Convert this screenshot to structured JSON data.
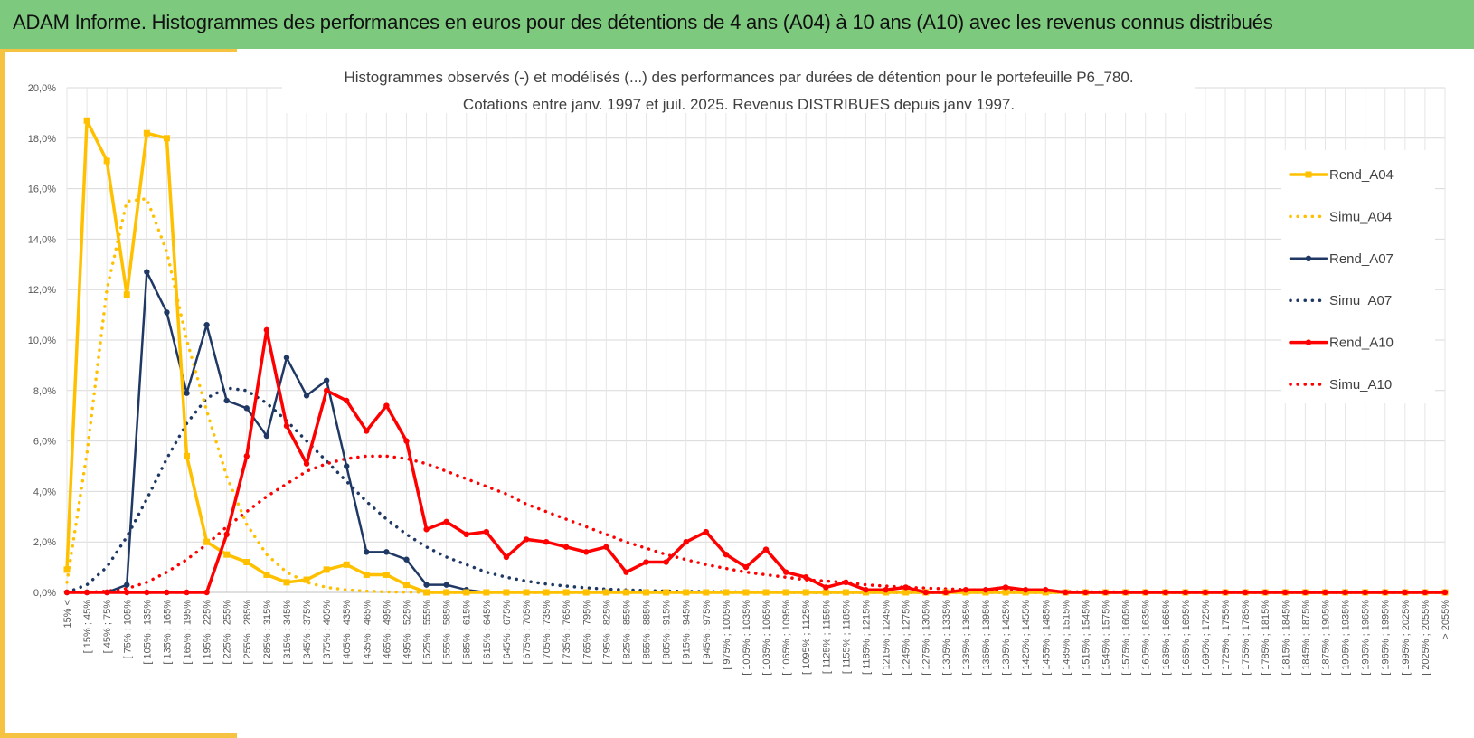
{
  "banner": {
    "title": "ADAM Informe. Histogrammes des performances en euros pour des détentions de 4 ans (A04) à 10 ans (A10) avec les revenus connus distribués"
  },
  "colors": {
    "banner_bg": "#7dc97e",
    "accent": "#f5c242",
    "A04": "#ffc000",
    "A07": "#1f3864",
    "A10": "#ff0000"
  },
  "chart_data": {
    "type": "line",
    "title": "Histogrammes observés (-) et modélisés (...) des performances par durées de détention pour le portefeuille P6_780.",
    "subtitle": "Cotations entre janv. 1997 et juil. 2025. Revenus DISTRIBUES depuis janv 1997.",
    "xlabel": "",
    "ylabel": "",
    "ylim": [
      0,
      20
    ],
    "yticks": [
      "0,0%",
      "2,0%",
      "4,0%",
      "6,0%",
      "8,0%",
      "10,0%",
      "12,0%",
      "14,0%",
      "16,0%",
      "18,0%",
      "20,0%"
    ],
    "grid": true,
    "legend_position": "right",
    "categories": [
      "15% <",
      "[ 15% ; 45%",
      "[ 45% ; 75%",
      "[ 75% ; 105%",
      "[ 105% ; 135%",
      "[ 135% ; 165%",
      "[ 165% ; 195%",
      "[ 195% ; 225%",
      "[ 225% ; 255%",
      "[ 255% ; 285%",
      "[ 285% ; 315%",
      "[ 315% ; 345%",
      "[ 345% ; 375%",
      "[ 375% ; 405%",
      "[ 405% ; 435%",
      "[ 435% ; 465%",
      "[ 465% ; 495%",
      "[ 495% ; 525%",
      "[ 525% ; 555%",
      "[ 555% ; 585%",
      "[ 585% ; 615%",
      "[ 615% ; 645%",
      "[ 645% ; 675%",
      "[ 675% ; 705%",
      "[ 705% ; 735%",
      "[ 735% ; 765%",
      "[ 765% ; 795%",
      "[ 795% ; 825%",
      "[ 825% ; 855%",
      "[ 855% ; 885%",
      "[ 885% ; 915%",
      "[ 915% ; 945%",
      "[ 945% ; 975%",
      "[ 975% ; 1005%",
      "[ 1005% ; 1035%",
      "[ 1035% ; 1065%",
      "[ 1065% ; 1095%",
      "[ 1095% ; 1125%",
      "[ 1125% ; 1155%",
      "[ 1155% ; 1185%",
      "[ 1185% ; 1215%",
      "[ 1215% ; 1245%",
      "[ 1245% ; 1275%",
      "[ 1275% ; 1305%",
      "[ 1305% ; 1335%",
      "[ 1335% ; 1365%",
      "[ 1365% ; 1395%",
      "[ 1395% ; 1425%",
      "[ 1425% ; 1455%",
      "[ 1455% ; 1485%",
      "[ 1485% ; 1515%",
      "[ 1515% ; 1545%",
      "[ 1545% ; 1575%",
      "[ 1575% ; 1605%",
      "[ 1605% ; 1635%",
      "[ 1635% ; 1665%",
      "[ 1665% ; 1695%",
      "[ 1695% ; 1725%",
      "[ 1725% ; 1755%",
      "[ 1755% ; 1785%",
      "[ 1785% ; 1815%",
      "[ 1815% ; 1845%",
      "[ 1845% ; 1875%",
      "[ 1875% ; 1905%",
      "[ 1905% ; 1935%",
      "[ 1935% ; 1965%",
      "[ 1965% ; 1995%",
      "[ 1995% ; 2025%",
      "[ 2025% ; 2055%",
      "> 2055%"
    ],
    "series": [
      {
        "name": "Rend_A04",
        "style": "solid",
        "marker": "square",
        "color": "#ffc000",
        "values": [
          0.9,
          18.7,
          17.1,
          11.8,
          18.2,
          18.0,
          5.4,
          2.0,
          1.5,
          1.2,
          0.7,
          0.4,
          0.5,
          0.9,
          1.1,
          0.7,
          0.7,
          0.3,
          0.0,
          0.0,
          0.0,
          0.0,
          0.0,
          0.0,
          0.0,
          0.0,
          0.0,
          0.0,
          0.0,
          0.0,
          0.0,
          0.0,
          0.0,
          0.0,
          0.0,
          0.0,
          0.0,
          0.0,
          0.0,
          0.0,
          0.0,
          0.0,
          0.0,
          0.0,
          0.0,
          0.0,
          0.0,
          0.0,
          0.0,
          0.0,
          0.0,
          0.0,
          0.0,
          0.0,
          0.0,
          0.0,
          0.0,
          0.0,
          0.0,
          0.0,
          0.0,
          0.0,
          0.0,
          0.0,
          0.0,
          0.0,
          0.0,
          0.0,
          0.0,
          0.0
        ]
      },
      {
        "name": "Simu_A04",
        "style": "dotted",
        "marker": "none",
        "color": "#ffc000",
        "values": [
          0.4,
          5.5,
          12.0,
          15.5,
          15.6,
          13.5,
          10.0,
          7.2,
          4.6,
          2.7,
          1.5,
          0.8,
          0.4,
          0.2,
          0.1,
          0.05,
          0.02,
          0.01,
          0.0,
          0.0,
          0.0,
          0.0,
          0.0,
          0.0,
          0.0,
          0.0,
          0.0,
          0.0,
          0.0,
          0.0,
          0.0,
          0.0,
          0.0,
          0.0,
          0.0,
          0.0,
          0.0,
          0.0,
          0.0,
          0.0,
          0.0,
          0.0,
          0.0,
          0.0,
          0.0,
          0.0,
          0.0,
          0.0,
          0.0,
          0.0,
          0.0,
          0.0,
          0.0,
          0.0,
          0.0,
          0.0,
          0.0,
          0.0,
          0.0,
          0.0,
          0.0,
          0.0,
          0.0,
          0.0,
          0.0,
          0.0,
          0.0,
          0.0,
          0.0,
          0.0
        ]
      },
      {
        "name": "Rend_A07",
        "style": "solid",
        "marker": "circle",
        "color": "#1f3864",
        "values": [
          0.0,
          0.0,
          0.0,
          0.3,
          12.7,
          11.1,
          7.9,
          10.6,
          7.6,
          7.3,
          6.2,
          9.3,
          7.8,
          8.4,
          5.0,
          1.6,
          1.6,
          1.3,
          0.3,
          0.3,
          0.1,
          0.0,
          0.0,
          0.0,
          0.0,
          0.0,
          0.0,
          0.0,
          0.0,
          0.0,
          0.0,
          0.0,
          0.0,
          0.0,
          0.0,
          0.0,
          0.0,
          0.0,
          0.0,
          0.0,
          0.0,
          0.0,
          0.0,
          0.0,
          0.0,
          0.0,
          0.0,
          0.0,
          0.0,
          0.0,
          0.0,
          0.0,
          0.0,
          0.0,
          0.0,
          0.0,
          0.0,
          0.0,
          0.0,
          0.0,
          0.0,
          0.0,
          0.0,
          0.0,
          0.0,
          0.0,
          0.0,
          0.0,
          0.0,
          0.0
        ]
      },
      {
        "name": "Simu_A07",
        "style": "dotted",
        "marker": "none",
        "color": "#1f3864",
        "values": [
          0.0,
          0.3,
          1.0,
          2.2,
          3.7,
          5.3,
          6.7,
          7.7,
          8.1,
          8.0,
          7.5,
          6.8,
          6.0,
          5.2,
          4.4,
          3.6,
          2.9,
          2.3,
          1.8,
          1.4,
          1.1,
          0.8,
          0.6,
          0.45,
          0.33,
          0.25,
          0.18,
          0.13,
          0.1,
          0.07,
          0.05,
          0.04,
          0.03,
          0.02,
          0.015,
          0.01,
          0.0,
          0.0,
          0.0,
          0.0,
          0.0,
          0.0,
          0.0,
          0.0,
          0.0,
          0.0,
          0.0,
          0.0,
          0.0,
          0.0,
          0.0,
          0.0,
          0.0,
          0.0,
          0.0,
          0.0,
          0.0,
          0.0,
          0.0,
          0.0,
          0.0,
          0.0,
          0.0,
          0.0,
          0.0,
          0.0,
          0.0,
          0.0,
          0.0,
          0.0
        ]
      },
      {
        "name": "Rend_A10",
        "style": "solid",
        "marker": "circle",
        "color": "#ff0000",
        "values": [
          0.0,
          0.0,
          0.0,
          0.0,
          0.0,
          0.0,
          0.0,
          0.0,
          2.3,
          5.4,
          10.4,
          6.6,
          5.1,
          8.0,
          7.6,
          6.4,
          7.4,
          6.0,
          2.5,
          2.8,
          2.3,
          2.4,
          1.4,
          2.1,
          2.0,
          1.8,
          1.6,
          1.8,
          0.8,
          1.2,
          1.2,
          2.0,
          2.4,
          1.5,
          1.0,
          1.7,
          0.8,
          0.6,
          0.2,
          0.4,
          0.1,
          0.1,
          0.2,
          0.0,
          0.0,
          0.1,
          0.1,
          0.2,
          0.1,
          0.1,
          0.0,
          0.0,
          0.0,
          0.0,
          0.0,
          0.0,
          0.0,
          0.0,
          0.0,
          0.0,
          0.0,
          0.0,
          0.0,
          0.0,
          0.0,
          0.0,
          0.0,
          0.0,
          0.0,
          0.0
        ]
      },
      {
        "name": "Simu_A10",
        "style": "dotted",
        "marker": "none",
        "color": "#ff0000",
        "values": [
          0.0,
          0.0,
          0.05,
          0.15,
          0.4,
          0.8,
          1.3,
          1.9,
          2.6,
          3.2,
          3.8,
          4.3,
          4.8,
          5.1,
          5.3,
          5.4,
          5.4,
          5.3,
          5.1,
          4.8,
          4.5,
          4.2,
          3.9,
          3.5,
          3.2,
          2.9,
          2.6,
          2.3,
          2.0,
          1.75,
          1.5,
          1.3,
          1.1,
          0.95,
          0.8,
          0.7,
          0.6,
          0.5,
          0.45,
          0.4,
          0.3,
          0.25,
          0.2,
          0.17,
          0.14,
          0.11,
          0.09,
          0.07,
          0.05,
          0.04,
          0.03,
          0.02,
          0.02,
          0.01,
          0.01,
          0.0,
          0.0,
          0.0,
          0.0,
          0.0,
          0.0,
          0.0,
          0.0,
          0.0,
          0.0,
          0.0,
          0.0,
          0.0,
          0.0,
          0.0
        ]
      }
    ]
  }
}
